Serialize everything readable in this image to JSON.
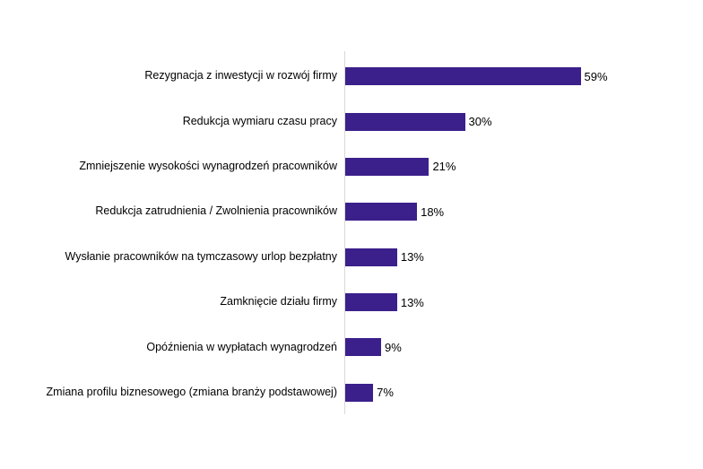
{
  "chart_data": {
    "type": "bar",
    "orientation": "horizontal",
    "title": "",
    "xlabel": "",
    "ylabel": "",
    "categories": [
      "Rezygnacja z inwestycji w rozwój firmy",
      "Redukcja wymiaru czasu pracy",
      "Zmniejszenie wysokości wynagrodzeń pracowników",
      "Redukcja zatrudnienia / Zwolnienia pracowników",
      "Wysłanie pracowników na tymczasowy urlop bezpłatny",
      "Zamknięcie działu firmy",
      "Opóźnienia w wypłatach wynagrodzeń",
      "Zmiana profilu biznesowego (zmiana branży podstawowej)"
    ],
    "values": [
      59,
      30,
      21,
      18,
      13,
      13,
      9,
      7
    ],
    "value_labels": [
      "59%",
      "30%",
      "21%",
      "18%",
      "13%",
      "13%",
      "9%",
      "7%"
    ],
    "xlim": [
      0,
      90
    ],
    "grid": false,
    "legend": false,
    "bar_color": "#3B208C",
    "axis_line_color": "#D9D9D9",
    "text_color": "#000000"
  }
}
